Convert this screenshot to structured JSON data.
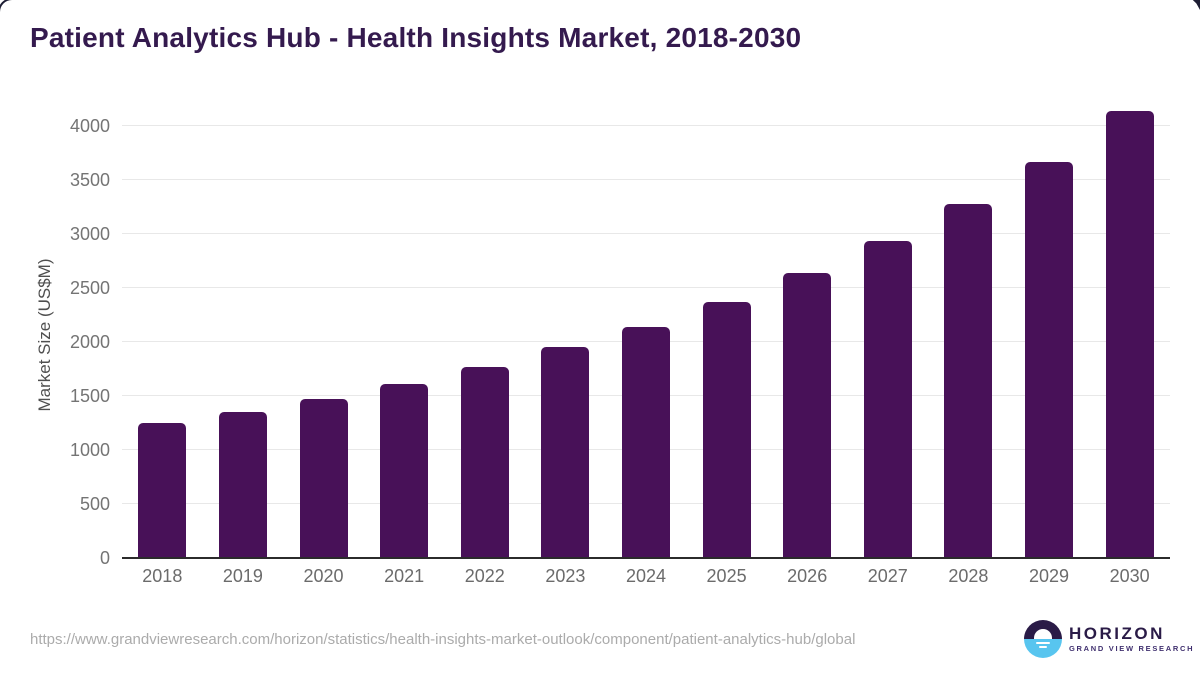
{
  "chart_data": {
    "type": "bar",
    "title": "Patient Analytics Hub - Health Insights Market, 2018-2030",
    "categories": [
      "2018",
      "2019",
      "2020",
      "2021",
      "2022",
      "2023",
      "2024",
      "2025",
      "2026",
      "2027",
      "2028",
      "2029",
      "2030"
    ],
    "values": [
      1250,
      1350,
      1470,
      1615,
      1770,
      1950,
      2140,
      2370,
      2640,
      2935,
      3280,
      3670,
      4135
    ],
    "xlabel": "",
    "ylabel": "Market Size (US$M)",
    "ylim": [
      0,
      4000
    ],
    "yticks": [
      0,
      500,
      1000,
      1500,
      2000,
      2500,
      3000,
      3500,
      4000
    ],
    "grid": "horizontal",
    "legend": "none",
    "bar_color": "#481158"
  },
  "footer": {
    "source_url": "https://www.grandviewresearch.com/horizon/statistics/health-insights-market-outlook/component/patient-analytics-hub/global"
  },
  "logo": {
    "name": "HORIZON",
    "subtitle": "GRAND VIEW RESEARCH",
    "icon": "horizon-sun-circle-icon"
  },
  "colors": {
    "background": "#ffffff",
    "title": "#341a4e",
    "bar": "#481158",
    "axis_line": "#2b2b2b",
    "gridline": "#e8e8e8",
    "tick_label": "#747474",
    "x_label": "#6b6b6b",
    "y_axis_title": "#4f4f4f",
    "url_text": "#ababab",
    "logo_dark": "#2a1b47",
    "logo_blue": "#58c5ef"
  }
}
